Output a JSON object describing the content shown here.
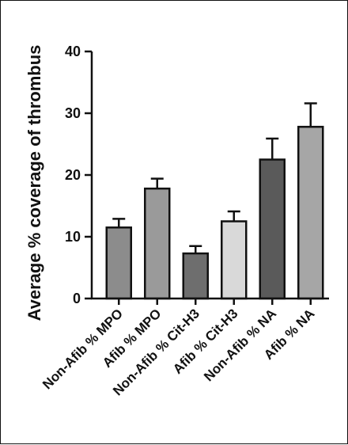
{
  "chart_data": {
    "type": "bar",
    "ylabel": "Average % coverage of thrombus",
    "ylim": [
      0,
      40
    ],
    "yticks": [
      0,
      10,
      20,
      30,
      40
    ],
    "categories": [
      "Non-Afib % MPO",
      "Afib % MPO",
      "Non-Afib % Cit-H3",
      "Afib % Cit-H3",
      "Non-Afib % NA",
      "Afib % NA"
    ],
    "values": [
      11.5,
      17.8,
      7.3,
      12.5,
      22.5,
      27.8
    ],
    "errors": [
      1.4,
      1.6,
      1.2,
      1.6,
      3.4,
      3.8
    ],
    "colors": [
      "#8c8c8c",
      "#9a9a9a",
      "#6e6e6e",
      "#d9d9d9",
      "#5a5a5a",
      "#a6a6a6"
    ],
    "grid": false
  }
}
